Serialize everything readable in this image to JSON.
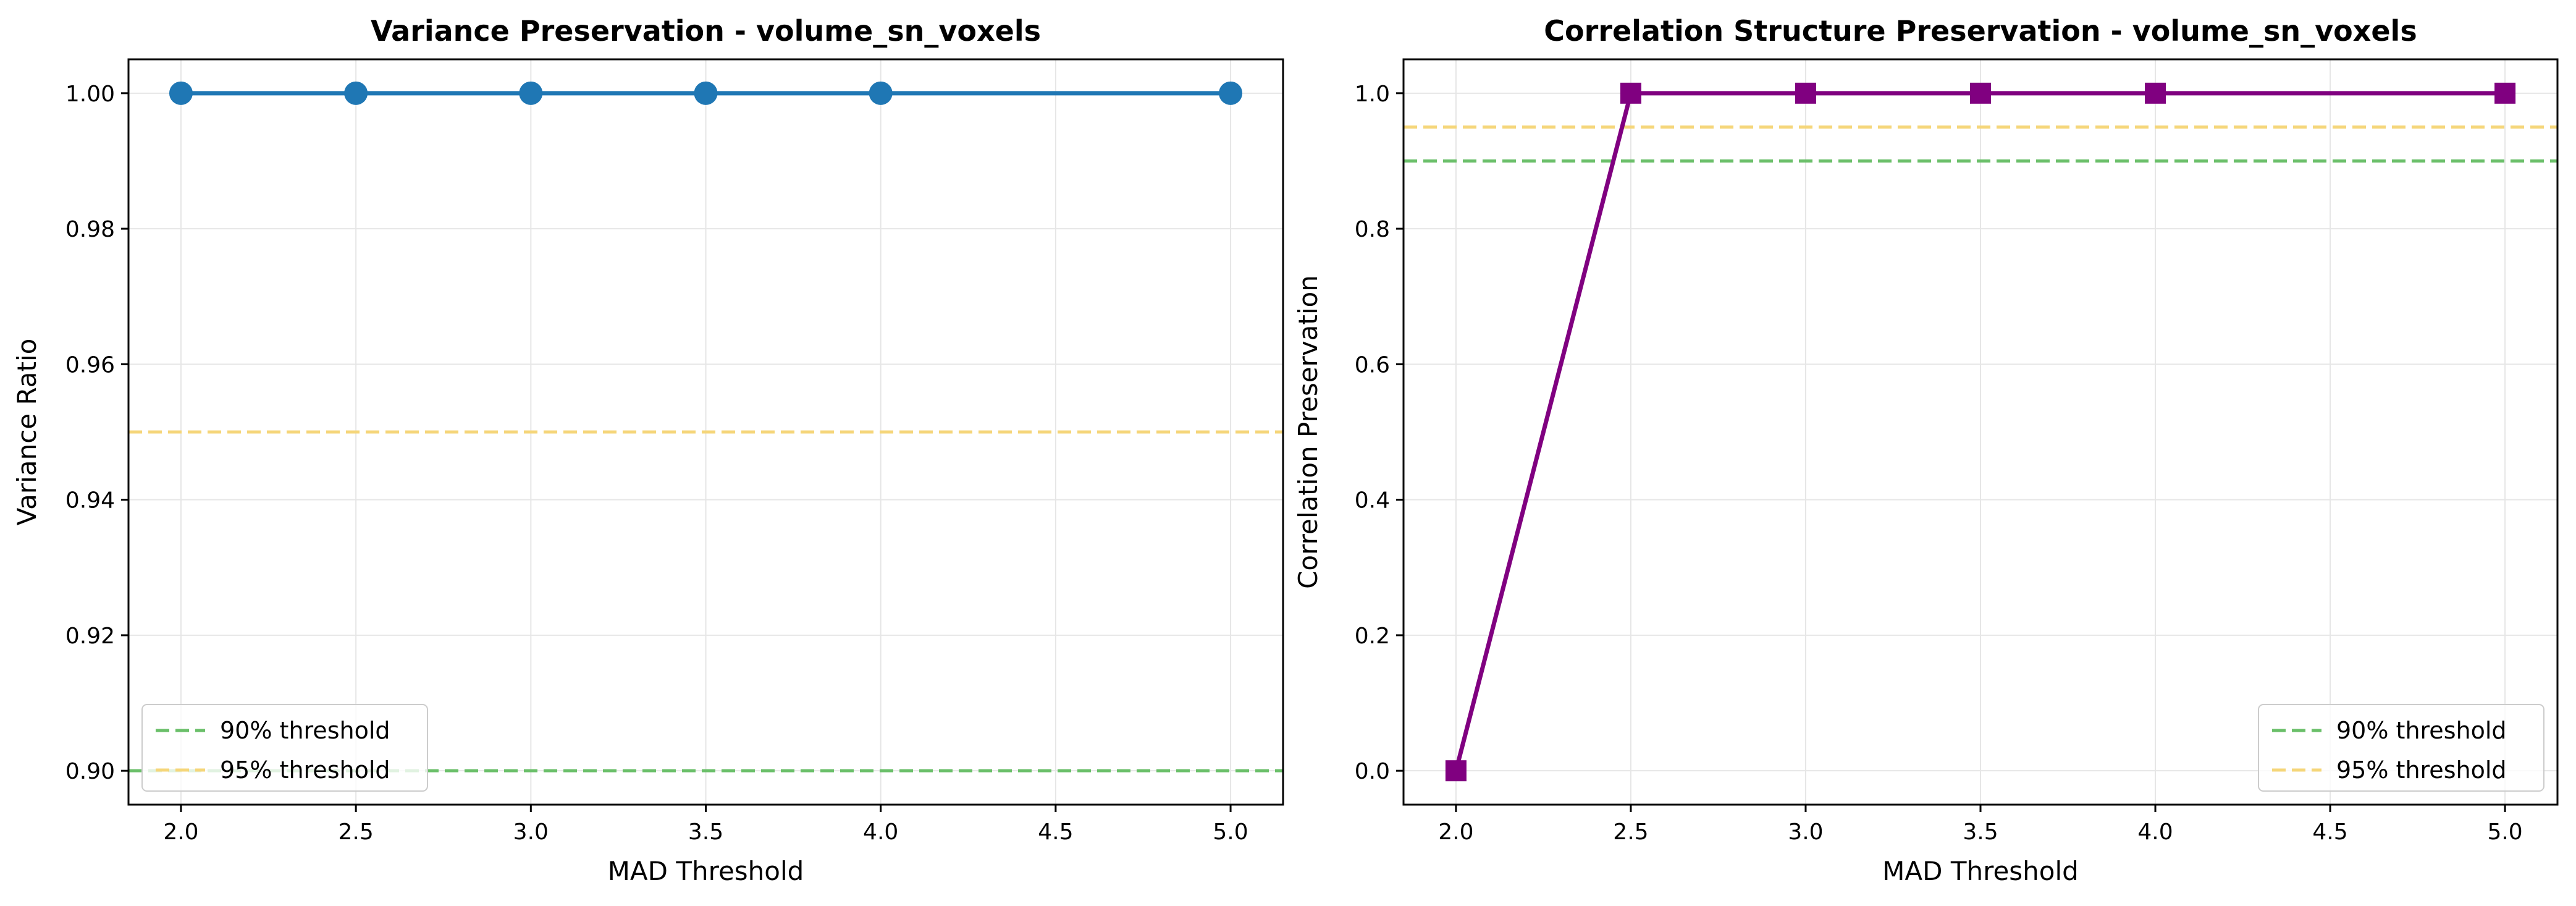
{
  "chart_data": [
    {
      "type": "line",
      "title": "Variance Preservation - volume_sn_voxels",
      "xlabel": "MAD Threshold",
      "ylabel": "Variance Ratio",
      "xlim": [
        1.85,
        5.15
      ],
      "ylim": [
        0.895,
        1.005
      ],
      "xticks": [
        2.0,
        2.5,
        3.0,
        3.5,
        4.0,
        4.5,
        5.0
      ],
      "xtick_labels": [
        "2.0",
        "2.5",
        "3.0",
        "3.5",
        "4.0",
        "4.5",
        "5.0"
      ],
      "yticks": [
        0.9,
        0.92,
        0.94,
        0.96,
        0.98,
        1.0
      ],
      "ytick_labels": [
        "0.90",
        "0.92",
        "0.94",
        "0.96",
        "0.98",
        "1.00"
      ],
      "grid": true,
      "legend_position": "lower-left",
      "series": [
        {
          "x": [
            2.0,
            2.5,
            3.0,
            3.5,
            4.0,
            5.0
          ],
          "y": [
            1.0,
            1.0,
            1.0,
            1.0,
            1.0,
            1.0
          ],
          "color": "#1f77b4",
          "marker": "circle"
        }
      ],
      "reference_lines": [
        {
          "name": "90% threshold",
          "y": 0.9,
          "color": "#6abf69",
          "style": "dashed"
        },
        {
          "name": "95% threshold",
          "y": 0.95,
          "color": "#f5d67a",
          "style": "dashed"
        }
      ]
    },
    {
      "type": "line",
      "title": "Correlation Structure Preservation - volume_sn_voxels",
      "xlabel": "MAD Threshold",
      "ylabel": "Correlation Preservation",
      "xlim": [
        1.85,
        5.15
      ],
      "ylim": [
        -0.05,
        1.05
      ],
      "xticks": [
        2.0,
        2.5,
        3.0,
        3.5,
        4.0,
        4.5,
        5.0
      ],
      "xtick_labels": [
        "2.0",
        "2.5",
        "3.0",
        "3.5",
        "4.0",
        "4.5",
        "5.0"
      ],
      "yticks": [
        0.0,
        0.2,
        0.4,
        0.6,
        0.8,
        1.0
      ],
      "ytick_labels": [
        "0.0",
        "0.2",
        "0.4",
        "0.6",
        "0.8",
        "1.0"
      ],
      "grid": true,
      "legend_position": "lower-right",
      "series": [
        {
          "x": [
            2.0,
            2.5,
            3.0,
            3.5,
            4.0,
            5.0
          ],
          "y": [
            0.0,
            1.0,
            1.0,
            1.0,
            1.0,
            1.0
          ],
          "color": "#800080",
          "marker": "square"
        }
      ],
      "reference_lines": [
        {
          "name": "90% threshold",
          "y": 0.9,
          "color": "#6abf69",
          "style": "dashed"
        },
        {
          "name": "95% threshold",
          "y": 0.95,
          "color": "#f5d67a",
          "style": "dashed"
        }
      ]
    }
  ]
}
